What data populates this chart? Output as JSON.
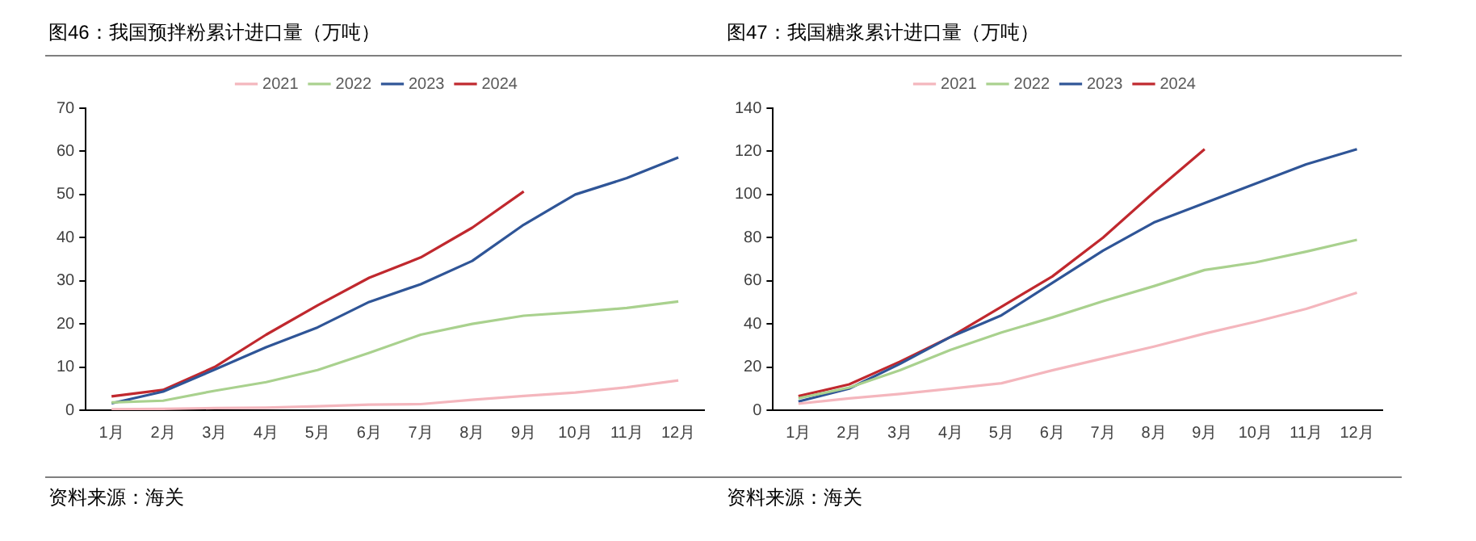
{
  "chart_data": [
    {
      "type": "line",
      "title": "图46：我国预拌粉累计进口量（万吨）",
      "categories": [
        "1月",
        "2月",
        "3月",
        "4月",
        "5月",
        "6月",
        "7月",
        "8月",
        "9月",
        "10月",
        "11月",
        "12月"
      ],
      "ylim": [
        0,
        70
      ],
      "yticks": [
        0,
        10,
        20,
        30,
        40,
        50,
        60,
        70
      ],
      "legend": "top",
      "annotations": [
        "资料来源：海关"
      ],
      "series": [
        {
          "name": "2021",
          "color": "#f4b6bd",
          "values": [
            0.2,
            0.3,
            0.5,
            0.6,
            0.9,
            1.3,
            1.4,
            2.4,
            3.3,
            4.1,
            5.3,
            6.9
          ]
        },
        {
          "name": "2022",
          "color": "#a9d18e",
          "values": [
            1.8,
            2.2,
            4.5,
            6.5,
            9.3,
            13.3,
            17.5,
            20,
            21.9,
            22.7,
            23.7,
            25.2
          ]
        },
        {
          "name": "2023",
          "color": "#2f5597",
          "values": [
            1.6,
            4.3,
            9.4,
            14.6,
            19.2,
            25.1,
            29.2,
            34.6,
            43,
            50,
            53.8,
            58.6
          ]
        },
        {
          "name": "2024",
          "color": "#c0282e",
          "values": [
            3.2,
            4.7,
            10,
            17.5,
            24.3,
            30.7,
            35.4,
            42.3,
            50.7,
            null,
            null,
            null
          ]
        }
      ]
    },
    {
      "type": "line",
      "title": "图47：我国糖浆累计进口量（万吨）",
      "categories": [
        "1月",
        "2月",
        "3月",
        "4月",
        "5月",
        "6月",
        "7月",
        "8月",
        "9月",
        "10月",
        "11月",
        "12月"
      ],
      "ylim": [
        0,
        140
      ],
      "yticks": [
        0,
        20,
        40,
        60,
        80,
        100,
        120,
        140
      ],
      "legend": "top",
      "annotations": [
        "资料来源：海关"
      ],
      "series": [
        {
          "name": "2021",
          "color": "#f4b6bd",
          "values": [
            3,
            5.5,
            7.5,
            10,
            12.5,
            18.5,
            24,
            29.5,
            35.5,
            41,
            47,
            54.5
          ]
        },
        {
          "name": "2022",
          "color": "#a9d18e",
          "values": [
            5.5,
            10.5,
            18.5,
            28,
            36,
            43,
            50.5,
            57.5,
            65,
            68.5,
            73.5,
            79
          ]
        },
        {
          "name": "2023",
          "color": "#2f5597",
          "values": [
            4,
            10,
            21.5,
            34,
            44,
            59,
            74,
            87,
            96,
            105,
            114,
            121
          ]
        },
        {
          "name": "2024",
          "color": "#c0282e",
          "values": [
            6.5,
            12,
            22.5,
            34,
            48,
            62,
            80,
            101,
            121,
            null,
            null,
            null
          ]
        }
      ]
    }
  ]
}
